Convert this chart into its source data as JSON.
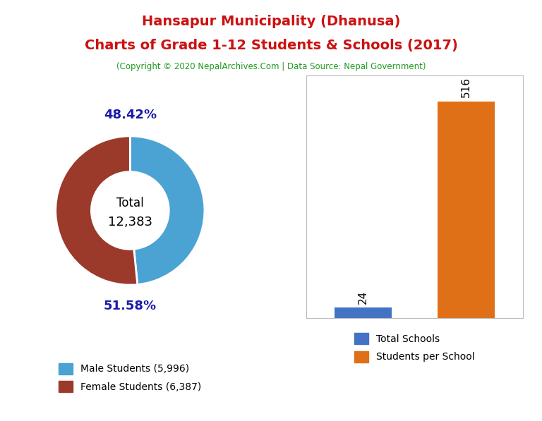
{
  "title_line1": "Hansapur Municipality (Dhanusa)",
  "title_line2": "Charts of Grade 1-12 Students & Schools (2017)",
  "subtitle": "(Copyright © 2020 NepalArchives.Com | Data Source: Nepal Government)",
  "title_color": "#cc1111",
  "subtitle_color": "#229922",
  "male_students": 5996,
  "female_students": 6387,
  "total_students": 12383,
  "male_pct": "48.42%",
  "female_pct": "51.58%",
  "male_color": "#4ba3d4",
  "female_color": "#9b3a2a",
  "pct_label_color": "#1a1aaa",
  "total_schools": 24,
  "students_per_school": 516,
  "bar_schools_color": "#4472c4",
  "bar_students_color": "#e07018",
  "legend_left_labels": [
    "Male Students (5,996)",
    "Female Students (6,387)"
  ],
  "legend_right_labels": [
    "Total Schools",
    "Students per School"
  ],
  "bg_color": "#ffffff"
}
